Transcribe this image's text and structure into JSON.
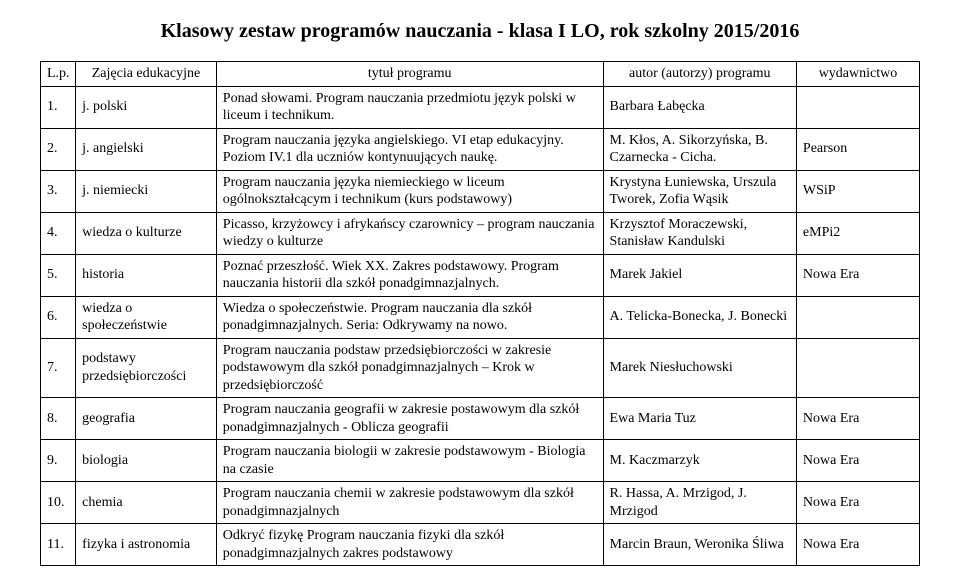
{
  "title": "Klasowy  zestaw programów nauczania  - klasa I LO, rok szkolny 2015/2016",
  "headers": {
    "lp": "L.p.",
    "subject": "Zajęcia edukacyjne",
    "program": "tytuł programu",
    "author": "autor (autorzy) programu",
    "publisher": "wydawnictwo"
  },
  "rows": [
    {
      "lp": "1.",
      "subject": "j. polski",
      "program": "Ponad słowami. Program nauczania przedmiotu język polski w liceum i  technikum.",
      "author": "Barbara Łabęcka",
      "publisher": ""
    },
    {
      "lp": "2.",
      "subject": "j. angielski",
      "program": " Program nauczania języka angielskiego. VI etap edukacyjny. Poziom IV.1 dla uczniów kontynuujących naukę.",
      "author": "M. Kłos, A. Sikorzyńska, B. Czarnecka - Cicha.",
      "publisher": "Pearson"
    },
    {
      "lp": "3.",
      "subject": "j. niemiecki",
      "program": "Program nauczania języka niemieckiego w liceum ogólnokształcącym i technikum (kurs podstawowy)",
      "author": "Krystyna Łuniewska, Urszula Tworek, Zofia Wąsik",
      "publisher": "WSiP"
    },
    {
      "lp": "4.",
      "subject": "wiedza o kulturze",
      "program": "Picasso, krzyżowcy i afrykańscy czarownicy – program nauczania wiedzy o kulturze",
      "author": "Krzysztof Moraczewski, Stanisław Kandulski",
      "publisher": "eMPi2"
    },
    {
      "lp": "5.",
      "subject": "historia",
      "program": "Poznać przeszłość. Wiek XX. Zakres podstawowy. Program nauczania historii  dla szkół ponadgimnazjalnych.",
      "author": "Marek Jakiel",
      "publisher": "Nowa Era"
    },
    {
      "lp": "6.",
      "subject": "wiedza o społeczeństwie",
      "program": "Wiedza o społeczeństwie. Program nauczania dla szkół ponadgimnazjalnych. Seria: Odkrywamy na nowo.",
      "author": "A. Telicka-Bonecka, J. Bonecki",
      "publisher": ""
    },
    {
      "lp": "7.",
      "subject": "podstawy przedsiębiorczości",
      "program": "Program nauczania podstaw przedsiębiorczości w zakresie podstawowym\ndla szkół ponadgimnazjalnych – Krok\nw przedsiębiorczość",
      "author": "Marek Niesłuchowski",
      "publisher": ""
    },
    {
      "lp": "8.",
      "subject": "geografia",
      "program": "Program nauczania geografii w zakresie postawowym dla szkół ponadgimnazjalnych - Oblicza geografii",
      "author": "Ewa Maria Tuz",
      "publisher": "Nowa Era"
    },
    {
      "lp": "9.",
      "subject": "biologia",
      "program": "Program nauczania biologii w zakresie podstawowym - Biologia na czasie",
      "author": "M. Kaczmarzyk",
      "publisher": "Nowa Era"
    },
    {
      "lp": "10.",
      "subject": "chemia",
      "program": "Program nauczania chemii w  zakresie podstawowym dla szkół ponadgimnazjalnych",
      "author": "R. Hassa, A. Mrzigod, J. Mrzigod",
      "publisher": "Nowa Era"
    },
    {
      "lp": "11.",
      "subject": "fizyka i astronomia",
      "program": "Odkryć fizykę Program nauczania fizyki dla szkół ponadgimnazjalnych zakres podstawowy",
      "author": "Marcin Braun, Weronika Śliwa",
      "publisher": "Nowa Era"
    }
  ]
}
